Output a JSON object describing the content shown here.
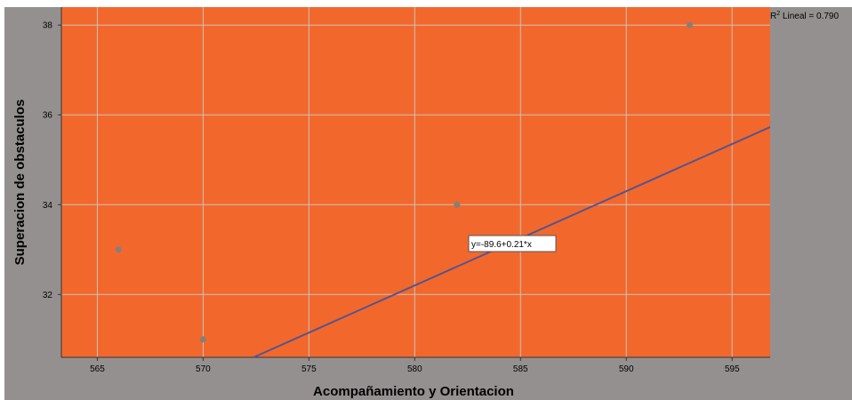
{
  "chart_data": {
    "type": "scatter",
    "title": "",
    "xlabel": "Acompañamiento y Orientacion",
    "ylabel": "Superacion de obstaculos",
    "xlim": [
      563.3,
      596.8
    ],
    "ylim": [
      30.6,
      38.4
    ],
    "xticks": [
      565,
      570,
      575,
      580,
      585,
      590,
      595
    ],
    "yticks": [
      32,
      34,
      36,
      38
    ],
    "grid": true,
    "points": [
      {
        "x": 566,
        "y": 33
      },
      {
        "x": 570,
        "y": 31
      },
      {
        "x": 582,
        "y": 34
      },
      {
        "x": 593,
        "y": 38
      }
    ],
    "fit_line": {
      "intercept": -89.6,
      "slope": 0.21,
      "label": "y=-89.6+0.21*x"
    },
    "r2_label": {
      "prefix": "R",
      "sup": "2",
      "text": " Lineal = 0.790"
    },
    "colors": {
      "outer_bg": "#959090",
      "plot_bg": "#f2682c",
      "grid": "#c9c2bd",
      "point": "#857f7a",
      "line": "#55548f"
    }
  }
}
